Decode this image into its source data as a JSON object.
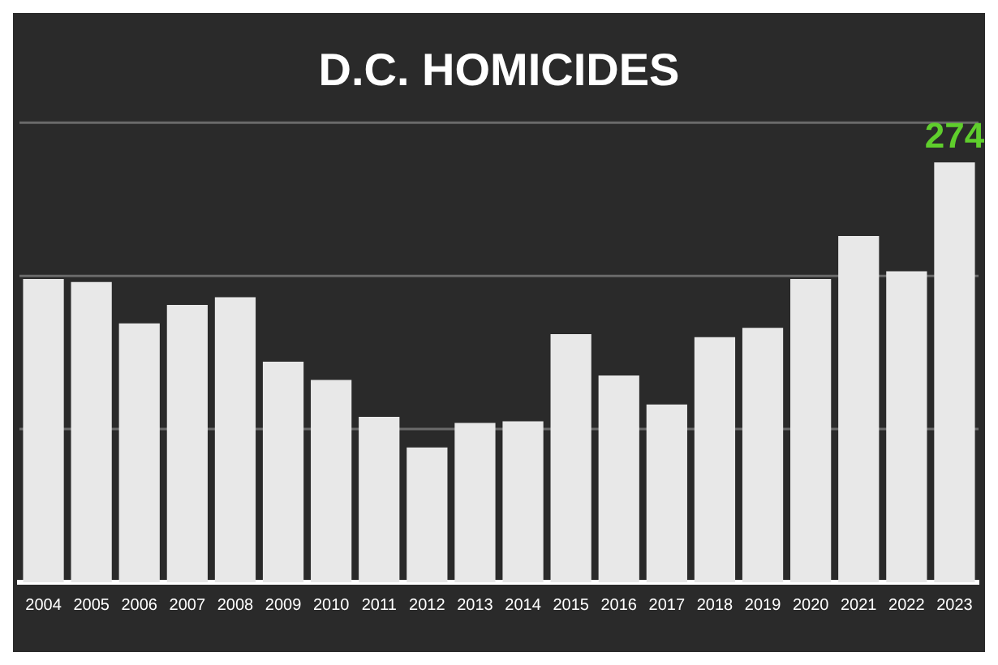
{
  "chart_data": {
    "type": "bar",
    "title": "D.C. HOMICIDES",
    "tick_labels": "x",
    "ylim": [
      0,
      300
    ],
    "ref_lines": [
      {
        "axis": "y",
        "value": 100,
        "color": "#6a6a6a",
        "line_style": "solid"
      },
      {
        "axis": "y",
        "value": 200,
        "color": "#6a6a6a",
        "line_style": "solid"
      },
      {
        "axis": "y",
        "value": 300,
        "color": "#6a6a6a",
        "line_style": "solid"
      }
    ],
    "categories": [
      "2004",
      "2005",
      "2006",
      "2007",
      "2008",
      "2009",
      "2010",
      "2011",
      "2012",
      "2013",
      "2014",
      "2015",
      "2016",
      "2017",
      "2018",
      "2019",
      "2020",
      "2021",
      "2022",
      "2023"
    ],
    "values": [
      198,
      196,
      169,
      181,
      186,
      144,
      132,
      108,
      88,
      104,
      105,
      162,
      135,
      116,
      160,
      166,
      198,
      226,
      203,
      274
    ],
    "value_labels": [
      null,
      null,
      null,
      null,
      null,
      null,
      null,
      null,
      null,
      null,
      null,
      null,
      null,
      null,
      null,
      null,
      null,
      null,
      null,
      "274"
    ],
    "color": "#e8e8e8"
  }
}
